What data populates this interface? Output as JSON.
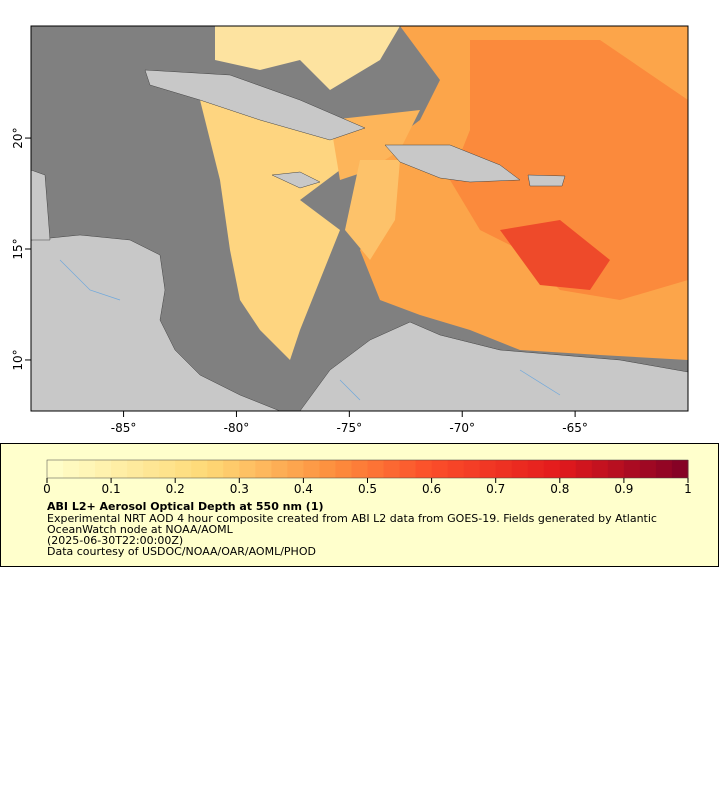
{
  "map": {
    "xlim": [
      -89.1,
      -60
    ],
    "ylim": [
      7.7,
      25.05
    ],
    "xticks": [
      {
        "value": -85,
        "label": "-85°"
      },
      {
        "value": -80,
        "label": "-80°"
      },
      {
        "value": -75,
        "label": "-75°"
      },
      {
        "value": -70,
        "label": "-70°"
      },
      {
        "value": -65,
        "label": "-65°"
      }
    ],
    "yticks": [
      {
        "value": 10,
        "label": "10°"
      },
      {
        "value": 15,
        "label": "15°"
      },
      {
        "value": 20,
        "label": "20°"
      }
    ]
  },
  "colorbar": {
    "lim": [
      0,
      1
    ],
    "ticks": [
      0,
      0.1,
      0.2,
      0.3,
      0.4,
      0.5,
      0.6,
      0.7,
      0.8,
      0.9,
      1
    ]
  },
  "legend": {
    "title": "ABI L2+ Aerosol Optical Depth at 550 nm (1)",
    "lines": [
      "Experimental NRT AOD 4 hour composite created from ABI L2 data from GOES-19. Fields generated by Atlantic",
      "OceanWatch node at NOAA/AOML",
      "(2025-06-30T22:00:00Z)",
      "Data courtesy of USDOC/NOAA/OAR/AOML/PHOD"
    ]
  }
}
